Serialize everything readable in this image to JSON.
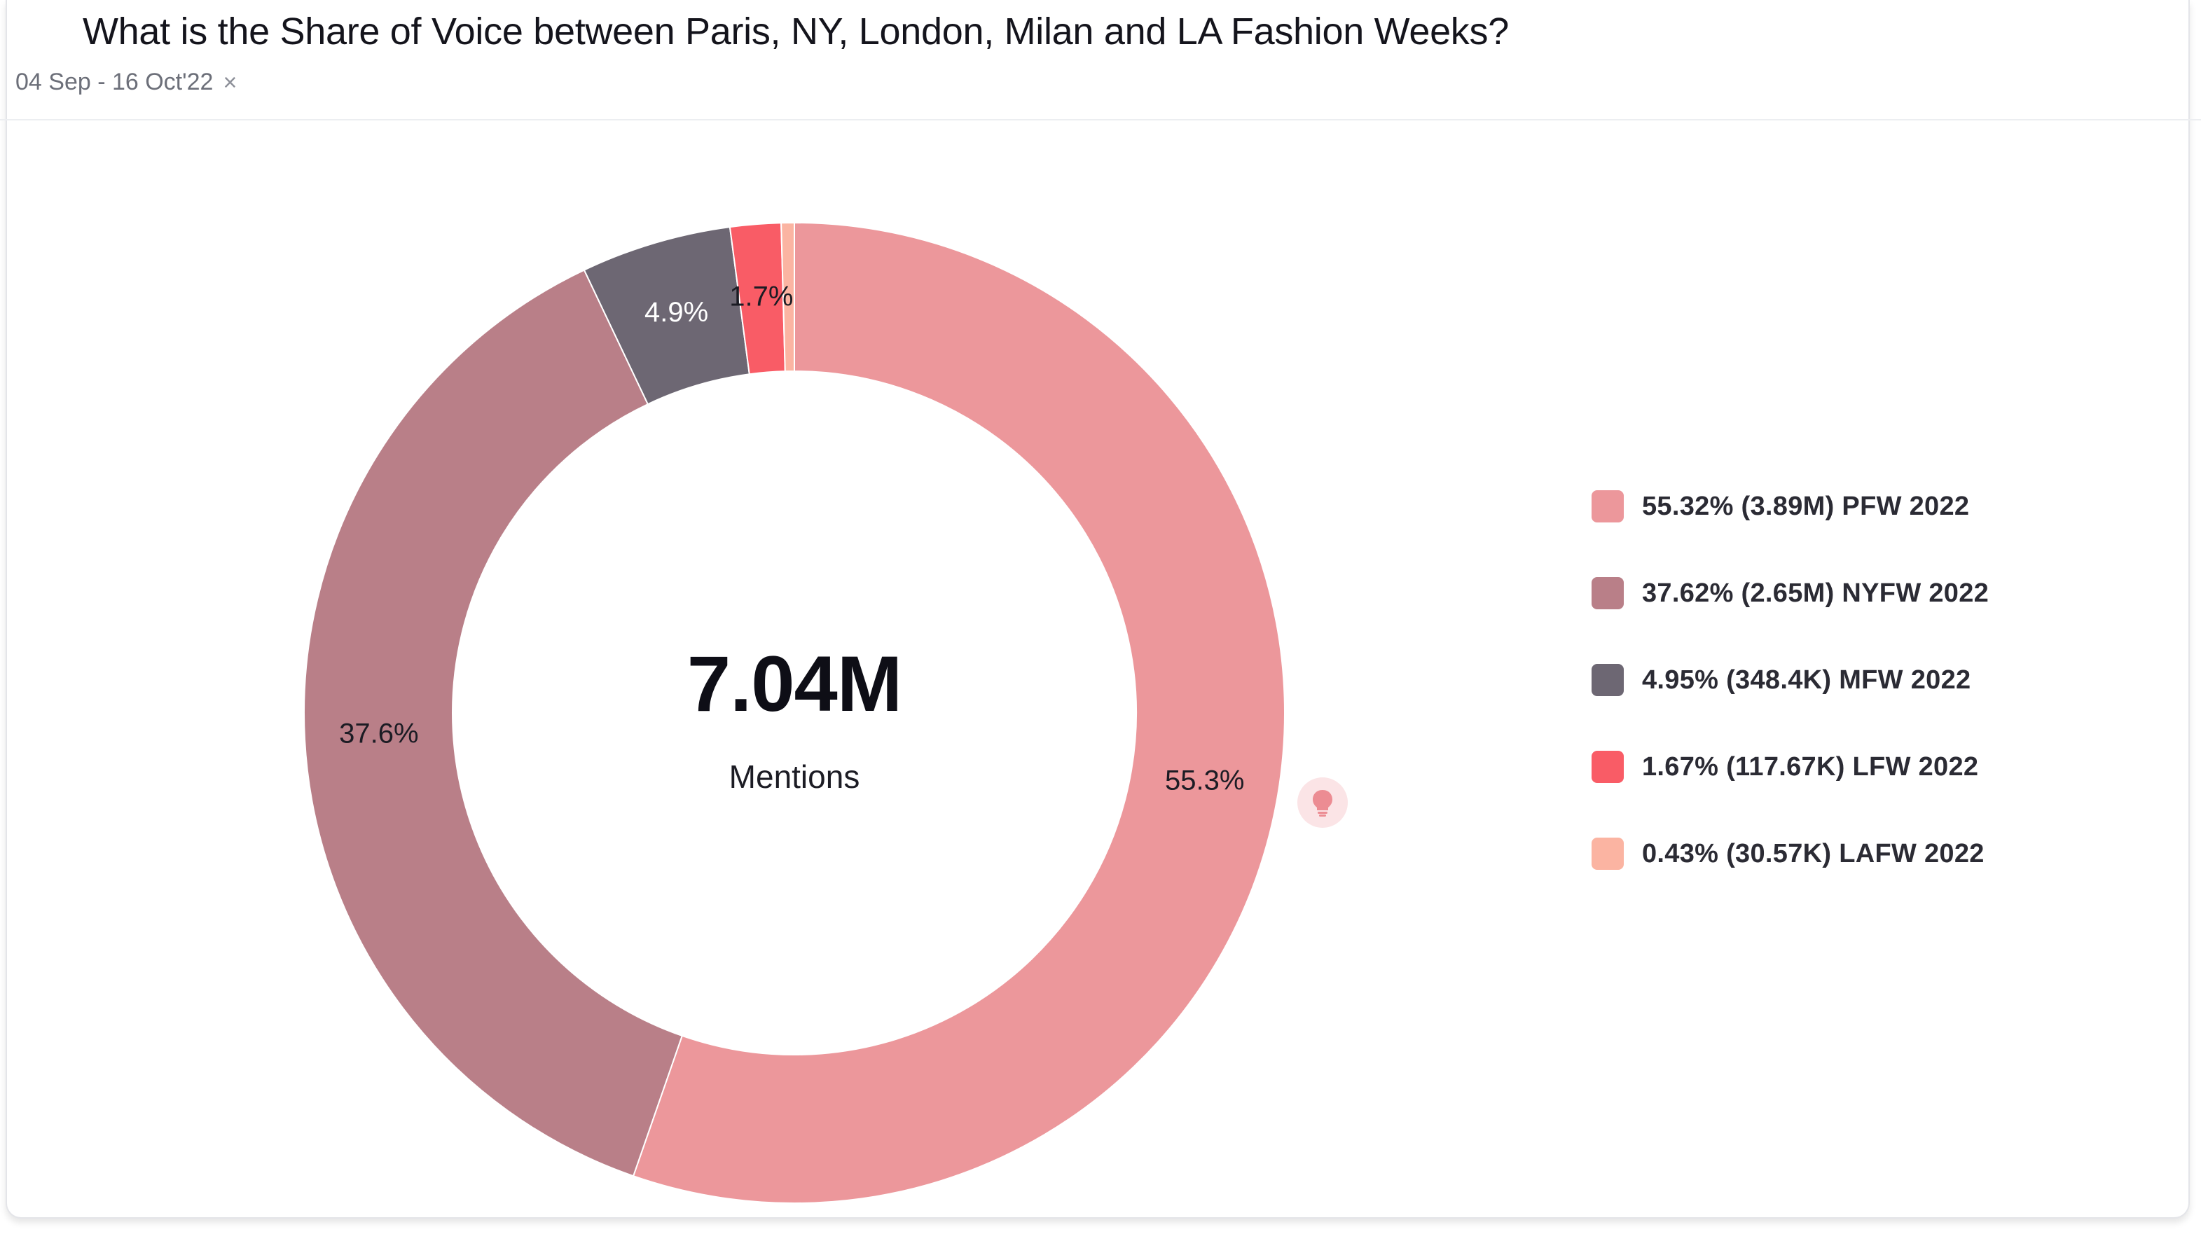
{
  "header": {
    "title": "What is the Share of Voice between Paris, NY, London, Milan and LA Fashion Weeks?",
    "filter_label": "04 Sep - 16 Oct'22",
    "filter_close": "×"
  },
  "center": {
    "value": "7.04M",
    "label": "Mentions"
  },
  "chart_data": {
    "type": "pie",
    "variant": "donut",
    "title": "What is the Share of Voice between Paris, NY, London, Milan and LA Fashion Weeks?",
    "total_label": "7.04M",
    "legend_placement": "right",
    "slices": [
      {
        "name": "PFW 2022",
        "percent": 55.32,
        "value": "3.89M",
        "slice_label": "55.3%",
        "legend_text": "55.32% (3.89M) PFW 2022",
        "color": "#ec979b"
      },
      {
        "name": "NYFW 2022",
        "percent": 37.62,
        "value": "2.65M",
        "slice_label": "37.6%",
        "legend_text": "37.62% (2.65M) NYFW 2022",
        "color": "#b97f88"
      },
      {
        "name": "MFW 2022",
        "percent": 4.95,
        "value": "348.4K",
        "slice_label": "4.9%",
        "legend_text": "4.95% (348.4K) MFW 2022",
        "color": "#6d6773"
      },
      {
        "name": "LFW 2022",
        "percent": 1.67,
        "value": "117.67K",
        "slice_label": "1.7%",
        "legend_text": "1.67% (117.67K) LFW 2022",
        "color": "#f95c66"
      },
      {
        "name": "LAFW 2022",
        "percent": 0.43,
        "value": "30.57K",
        "slice_label": "",
        "legend_text": "0.43% (30.57K) LAFW 2022",
        "color": "#fbb4a2"
      }
    ]
  },
  "colors": {
    "insight_bg": "#fbe4e6",
    "insight_icon": "#ec8c93"
  },
  "icons": {
    "insight": "lightbulb-icon",
    "filter_close": "close-icon"
  }
}
